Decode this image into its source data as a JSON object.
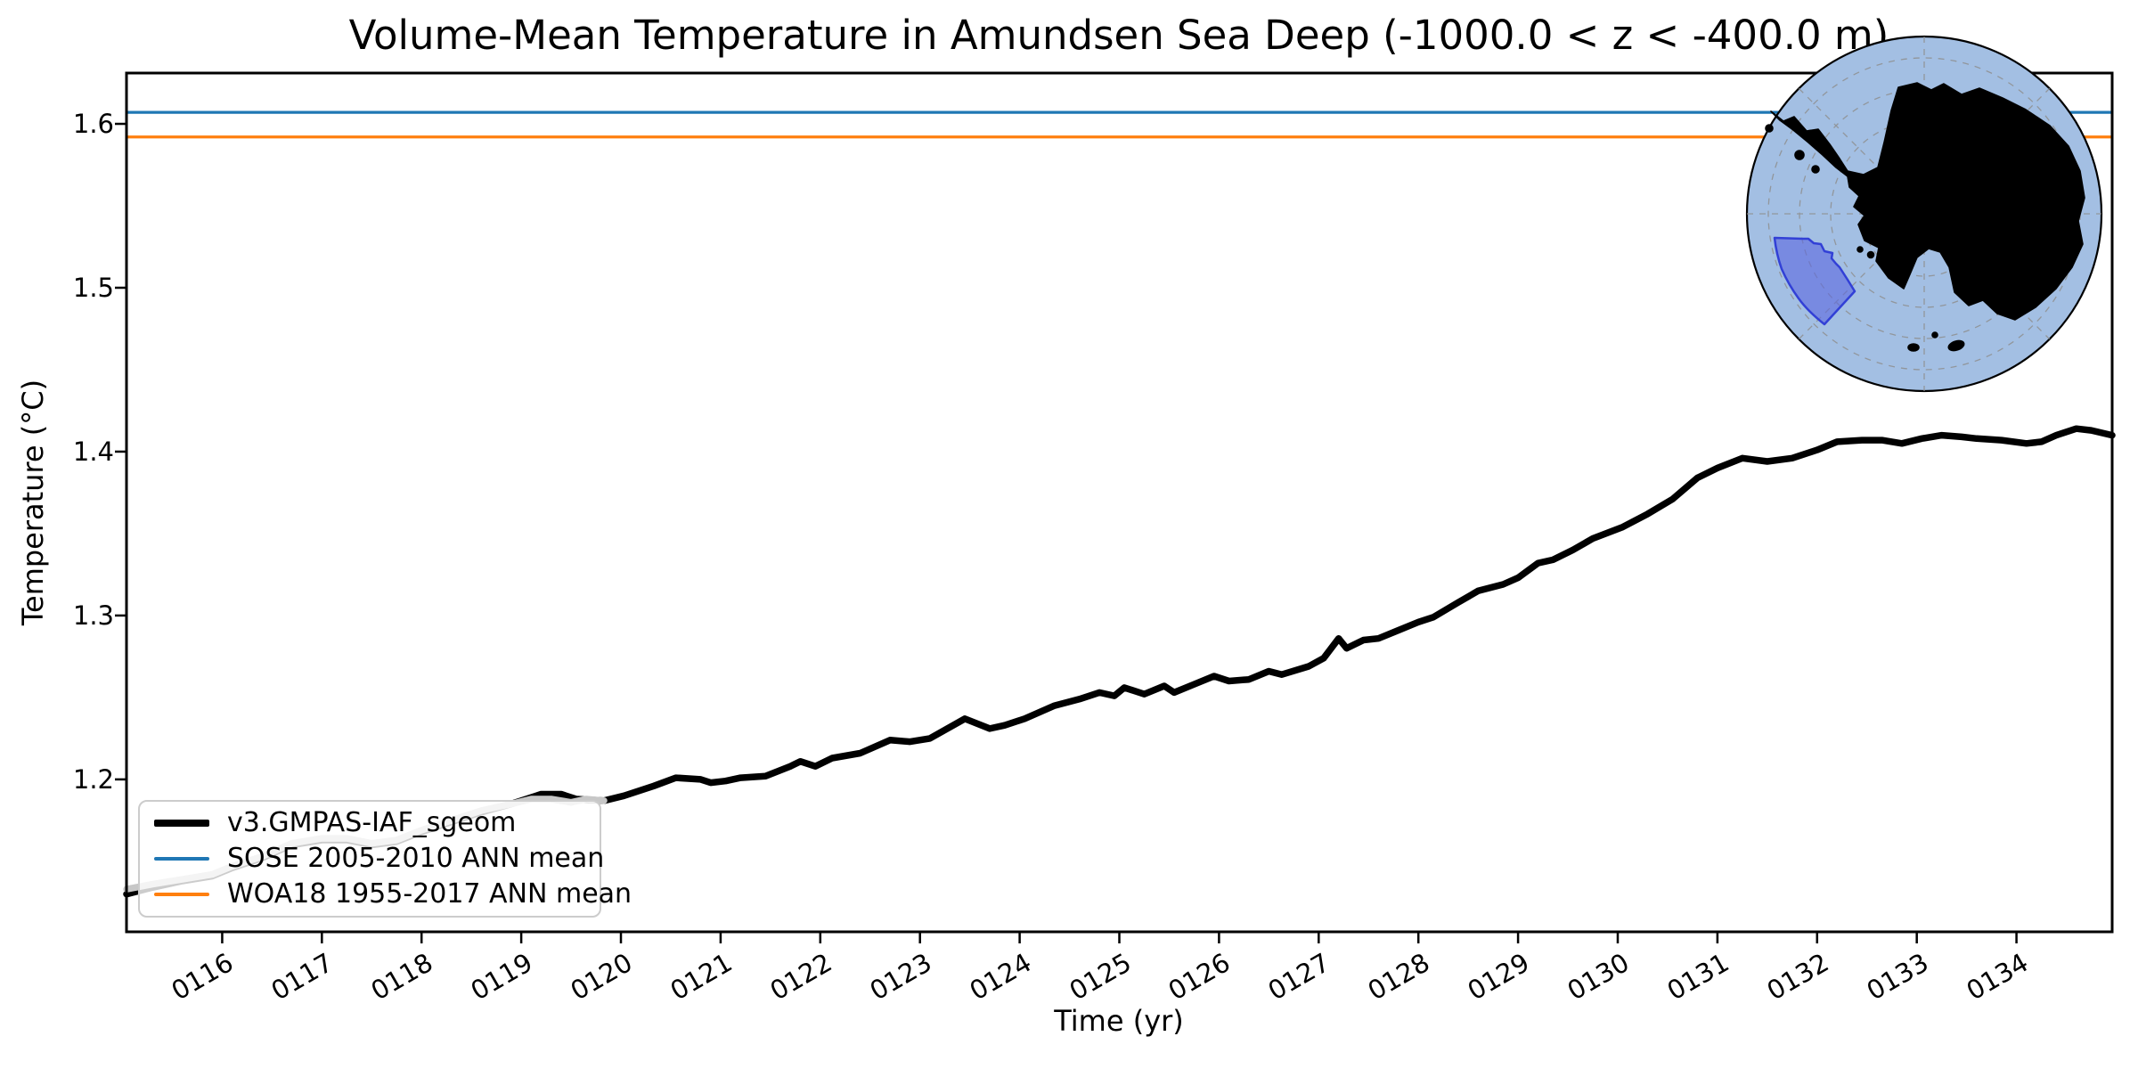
{
  "title": "Volume-Mean Temperature in Amundsen Sea Deep (-1000.0 < z < -400.0 m)",
  "axes": {
    "xlabel": "Time (yr)",
    "ylabel": "Temperature (°C)",
    "x_ticks": [
      {
        "value": 116,
        "label": "0116"
      },
      {
        "value": 117,
        "label": "0117"
      },
      {
        "value": 118,
        "label": "0118"
      },
      {
        "value": 119,
        "label": "0119"
      },
      {
        "value": 120,
        "label": "0120"
      },
      {
        "value": 121,
        "label": "0121"
      },
      {
        "value": 122,
        "label": "0122"
      },
      {
        "value": 123,
        "label": "0123"
      },
      {
        "value": 124,
        "label": "0124"
      },
      {
        "value": 125,
        "label": "0125"
      },
      {
        "value": 126,
        "label": "0126"
      },
      {
        "value": 127,
        "label": "0127"
      },
      {
        "value": 128,
        "label": "0128"
      },
      {
        "value": 129,
        "label": "0129"
      },
      {
        "value": 130,
        "label": "0130"
      },
      {
        "value": 131,
        "label": "0131"
      },
      {
        "value": 132,
        "label": "0132"
      },
      {
        "value": 133,
        "label": "0133"
      },
      {
        "value": 134,
        "label": "0134"
      }
    ],
    "y_ticks": [
      {
        "value": 1.2,
        "label": "1.2"
      },
      {
        "value": 1.3,
        "label": "1.3"
      },
      {
        "value": 1.4,
        "label": "1.4"
      },
      {
        "value": 1.5,
        "label": "1.5"
      },
      {
        "value": 1.6,
        "label": "1.6"
      }
    ]
  },
  "legend": {
    "items": [
      {
        "label": "v3.GMPAS-IAF_sgeom",
        "color": "#000000",
        "line_width": 8
      },
      {
        "label": "SOSE 2005-2010 ANN mean",
        "color": "#1f77b4",
        "line_width": 3.5
      },
      {
        "label": "WOA18 1955-2017 ANN mean",
        "color": "#ff7f0e",
        "line_width": 3.5
      }
    ]
  },
  "colors": {
    "main_line": "#000000",
    "gray_overlay_line": "#c7c7c7",
    "sose_line": "#1f77b4",
    "woa_line": "#ff7f0e",
    "map_ocean": "#a3bfe3",
    "map_land": "#f1efdc",
    "map_graticule": "#8f8f8f",
    "map_region_fill": "#5b68e0",
    "map_region_edge": "#3240d6"
  },
  "chart_data": {
    "type": "line",
    "title": "Volume-Mean Temperature in Amundsen Sea Deep (-1000.0 < z < -400.0 m)",
    "xlabel": "Time (yr)",
    "ylabel": "Temperature (°C)",
    "xlim": [
      115.04,
      134.96
    ],
    "ylim": [
      1.107,
      1.631
    ],
    "grid": false,
    "legend_position": "lower left",
    "series": [
      {
        "name": "v3.GMPAS-IAF_sgeom",
        "kind": "line",
        "color": "#000000",
        "line_width": 7.5,
        "x": [
          115.04,
          115.3,
          115.6,
          115.9,
          116.1,
          116.4,
          116.7,
          117.0,
          117.25,
          117.5,
          117.75,
          118.0,
          118.3,
          118.6,
          118.9,
          119.2,
          119.4,
          119.55,
          119.83,
          120.03,
          120.33,
          120.55,
          120.8,
          120.9,
          121.05,
          121.2,
          121.45,
          121.7,
          121.8,
          121.95,
          122.12,
          122.4,
          122.7,
          122.9,
          123.1,
          123.45,
          123.7,
          123.85,
          124.05,
          124.35,
          124.6,
          124.8,
          124.95,
          125.05,
          125.25,
          125.45,
          125.55,
          125.75,
          125.95,
          126.1,
          126.3,
          126.5,
          126.63,
          126.9,
          127.05,
          127.2,
          127.28,
          127.45,
          127.6,
          127.8,
          128.0,
          128.15,
          128.4,
          128.6,
          128.85,
          129.0,
          129.2,
          129.35,
          129.55,
          129.75,
          130.05,
          130.3,
          130.55,
          130.8,
          131.0,
          131.25,
          131.5,
          131.75,
          132.0,
          132.2,
          132.45,
          132.65,
          132.85,
          133.05,
          133.25,
          133.45,
          133.6,
          133.85,
          134.1,
          134.25,
          134.4,
          134.6,
          134.75,
          134.96
        ],
        "y": [
          1.13,
          1.134,
          1.138,
          1.141,
          1.146,
          1.152,
          1.16,
          1.163,
          1.163,
          1.16,
          1.162,
          1.168,
          1.174,
          1.18,
          1.185,
          1.191,
          1.191,
          1.188,
          1.187,
          1.19,
          1.196,
          1.201,
          1.2,
          1.198,
          1.199,
          1.201,
          1.202,
          1.208,
          1.211,
          1.208,
          1.213,
          1.216,
          1.224,
          1.223,
          1.225,
          1.237,
          1.231,
          1.233,
          1.237,
          1.245,
          1.249,
          1.253,
          1.251,
          1.256,
          1.252,
          1.257,
          1.253,
          1.258,
          1.263,
          1.26,
          1.261,
          1.266,
          1.264,
          1.269,
          1.274,
          1.286,
          1.28,
          1.285,
          1.286,
          1.291,
          1.296,
          1.299,
          1.308,
          1.315,
          1.319,
          1.323,
          1.332,
          1.334,
          1.34,
          1.347,
          1.354,
          1.362,
          1.371,
          1.384,
          1.39,
          1.396,
          1.394,
          1.396,
          1.401,
          1.406,
          1.407,
          1.407,
          1.405,
          1.408,
          1.41,
          1.409,
          1.408,
          1.407,
          1.405,
          1.406,
          1.41,
          1.414,
          1.413,
          1.41
        ]
      },
      {
        "name": "gray-overlay-segment",
        "kind": "line",
        "color": "#c7c7c7",
        "line_width": 7.5,
        "x": [
          115.04,
          115.3,
          115.6,
          115.9,
          116.1,
          116.4,
          116.7,
          117.0,
          117.25,
          117.5,
          117.75,
          118.0,
          118.3,
          118.6,
          118.9,
          119.1,
          119.3,
          119.5,
          119.65,
          119.83
        ],
        "y": [
          1.133,
          1.136,
          1.139,
          1.142,
          1.147,
          1.153,
          1.161,
          1.164,
          1.164,
          1.161,
          1.163,
          1.169,
          1.175,
          1.181,
          1.185,
          1.188,
          1.188,
          1.186,
          1.188,
          1.187
        ]
      },
      {
        "name": "SOSE 2005-2010 ANN mean",
        "kind": "hline",
        "color": "#1f77b4",
        "line_width": 3.2,
        "value": 1.607
      },
      {
        "name": "WOA18 1955-2017 ANN mean",
        "kind": "hline",
        "color": "#ff7f0e",
        "line_width": 3.2,
        "value": 1.592
      }
    ]
  }
}
